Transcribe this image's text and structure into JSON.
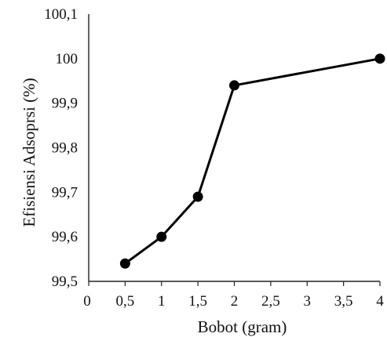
{
  "chart_data": {
    "type": "line",
    "title": "",
    "xlabel": "Bobot (gram)",
    "ylabel": "Efisiensi Adsoprsi (%)",
    "xticks": [
      "0",
      "0,5",
      "1",
      "1,5",
      "2",
      "2,5",
      "3",
      "3,5",
      "4"
    ],
    "yticks": [
      "99,5",
      "99,6",
      "99,7",
      "99,8",
      "99,9",
      "100",
      "100,1"
    ],
    "ylim": [
      99.5,
      100.1
    ],
    "grid": false,
    "series": [
      {
        "x": [
          "0,5",
          "1",
          "1,5",
          "2",
          "4"
        ],
        "y": [
          99.54,
          99.6,
          99.69,
          99.94,
          100.0
        ]
      }
    ]
  }
}
